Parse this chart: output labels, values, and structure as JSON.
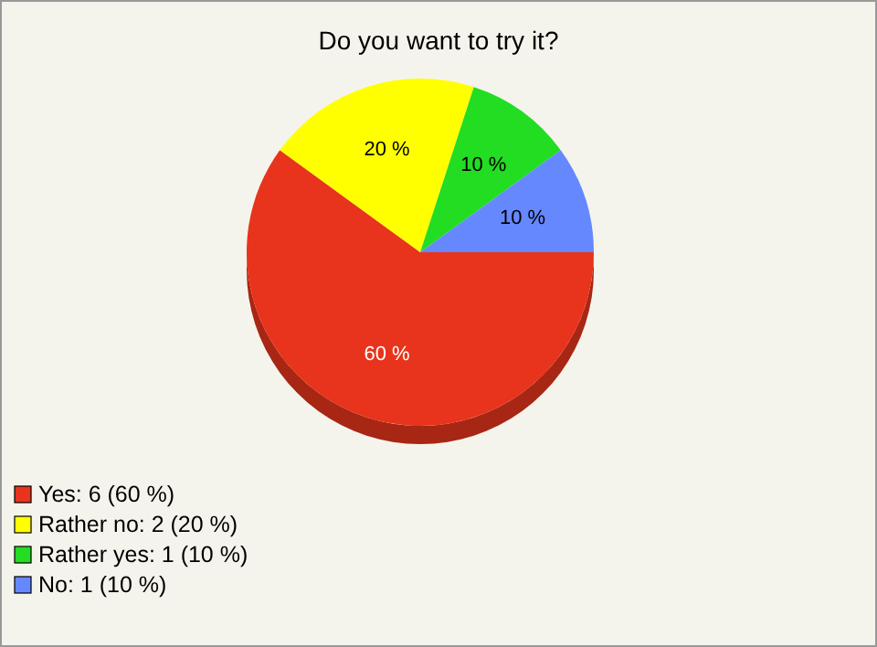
{
  "chart_data": {
    "type": "pie",
    "title": "Do you want to try it?",
    "categories": [
      "Yes: 6 (60 %)",
      "Rather no: 2 (20 %)",
      "Rather yes: 1 (10 %)",
      "No: 1 (10 %)"
    ],
    "values": [
      60,
      20,
      10,
      10
    ],
    "colors": [
      "#e8341c",
      "#ffff00",
      "#22dd22",
      "#6688ff"
    ],
    "value_labels": [
      "60 %",
      "20 %",
      "10 %",
      "10 %"
    ],
    "legend": "bottom left"
  }
}
